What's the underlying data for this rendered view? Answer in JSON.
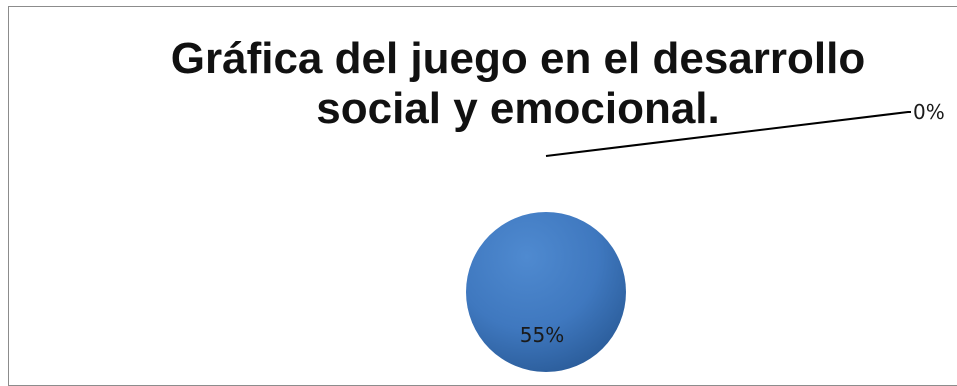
{
  "chart_data": {
    "type": "pie",
    "title_line1": "Gráfica del juego en el desarrollo",
    "title_line2": "social y emocional.",
    "title": "Gráfica del juego en el desarrollo social y emocional.",
    "categories": [
      "",
      ""
    ],
    "values": [
      55,
      0
    ],
    "data_labels": [
      "55%",
      "0%"
    ],
    "colors": [
      "#3f78bf",
      "#c0504d"
    ],
    "legend": "none"
  }
}
